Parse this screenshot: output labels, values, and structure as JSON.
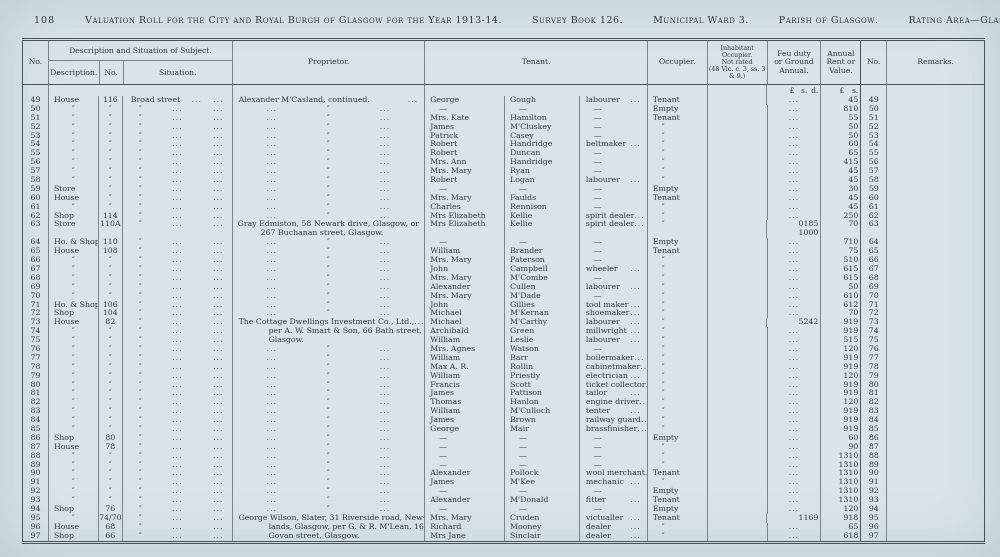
{
  "page": {
    "number": "108",
    "title": "Valuation Roll for the City and Royal Burgh of Glasgow for the Year 1913-14.",
    "survey_book": "Survey Book 126.",
    "municipal_ward": "Municipal Ward 3.",
    "parish": "Parish of Glasgow.",
    "rating_area": "Rating Area—Glasgow."
  },
  "colors": {
    "paper": "#d9e4ea",
    "ink": "#2e363a",
    "rule": "#49535a"
  },
  "table": {
    "col_no": "No.",
    "col_desc_group": "Description and Situation of Subject.",
    "col_description": "Description.",
    "col_house_no": "No.",
    "col_situation": "Situation.",
    "col_proprietor": "Proprietor.",
    "col_tenant": "Tenant.",
    "col_occupier": "Occupier.",
    "col_inhabitant_lines": [
      "Inhabitant Occupier.",
      "Not rated",
      "(48 Vic. c. 3, ss. 3 & 9.)"
    ],
    "col_feu_lines": [
      "Feu duty",
      "or Ground",
      "Annual."
    ],
    "col_rent_lines": [
      "Annual",
      "Rent or",
      "Value."
    ],
    "col_no_right": "No.",
    "col_remarks": "Remarks.",
    "money_lsd": [
      "£",
      "s.",
      "d."
    ],
    "money_ls": [
      "£",
      "s."
    ],
    "ditto": "″",
    "dash": "—",
    "dots": "...",
    "row_fields": [
      "no",
      "description",
      "house_no",
      "situation",
      "proprietor_type",
      "proprietor",
      "tenant_first",
      "tenant_surname",
      "tenant_occupation",
      "occupier",
      "feu_duty",
      "feu_duty_line2",
      "annual_rent"
    ],
    "rows": [
      [
        "49",
        "House",
        "116",
        "Broad street",
        "text",
        "Alexander M'Casland, continued.",
        "George",
        "Gough",
        "labourer",
        "Tenant",
        "",
        "",
        "4 5"
      ],
      [
        "50",
        "″",
        "″",
        "″",
        "ditto",
        "",
        "—",
        "—",
        "—",
        "Empty",
        "",
        "",
        "8 10"
      ],
      [
        "51",
        "″",
        "″",
        "″",
        "ditto",
        "",
        "Mrs. Kate",
        "Hamilton",
        "—",
        "Tenant",
        "",
        "",
        "5 5"
      ],
      [
        "52",
        "″",
        "″",
        "″",
        "ditto",
        "",
        "James",
        "M'Cluskey",
        "—",
        "″",
        "",
        "",
        "5 0"
      ],
      [
        "53",
        "″",
        "″",
        "″",
        "ditto",
        "",
        "Patrick",
        "Casey",
        "—",
        "″",
        "",
        "",
        "5 0"
      ],
      [
        "54",
        "″",
        "″",
        "″",
        "ditto",
        "",
        "Robert",
        "Handridge",
        "beltmaker",
        "″",
        "",
        "",
        "6 0"
      ],
      [
        "55",
        "″",
        "″",
        "″",
        "ditto",
        "",
        "Robert",
        "Duncan",
        "—",
        "″",
        "",
        "",
        "6 5"
      ],
      [
        "56",
        "″",
        "″",
        "″",
        "ditto",
        "",
        "Mrs. Ann",
        "Handridge",
        "—",
        "″",
        "",
        "",
        "4 15"
      ],
      [
        "57",
        "″",
        "″",
        "″",
        "ditto",
        "",
        "Mrs. Mary",
        "Ryan",
        "—",
        "″",
        "",
        "",
        "4 5"
      ],
      [
        "58",
        "″",
        "″",
        "″",
        "ditto",
        "",
        "Robert",
        "Logan",
        "labourer",
        "″",
        "",
        "",
        "4 5"
      ],
      [
        "59",
        "Store",
        "″",
        "″",
        "ditto",
        "",
        "—",
        "—",
        "—",
        "Empty",
        "",
        "",
        "3 0"
      ],
      [
        "60",
        "House",
        "″",
        "″",
        "ditto",
        "",
        "Mrs. Mary",
        "Faulds",
        "—",
        "Tenant",
        "",
        "",
        "4 5"
      ],
      [
        "61",
        "″",
        "″",
        "″",
        "ditto",
        "",
        "Charles",
        "Rennison",
        "—",
        "″",
        "",
        "",
        "4 5"
      ],
      [
        "62",
        "Shop",
        "114",
        "″",
        "ditto",
        "",
        "Mrs Elizabeth",
        "Kellie",
        "spirit dealer",
        "″",
        "",
        "",
        "25 0"
      ],
      [
        "63",
        "Store",
        "110A",
        "″",
        "text2",
        "Gray Edmiston, 58 Newark drive, Glasgow, or|267 Buchanan street, Glasgow.",
        "Mrs Elizabeth",
        "Kellie",
        "spirit dealer",
        "″",
        "0 18 5",
        "10 0 0",
        "7 0"
      ],
      [
        "64",
        "Ho. & Shop",
        "110",
        "″",
        "ditto",
        "",
        "—",
        "—",
        "—",
        "Empty",
        "",
        "",
        "7 10"
      ],
      [
        "65",
        "House",
        "108",
        "″",
        "ditto",
        "",
        "William",
        "Brander",
        "—",
        "Tenant",
        "",
        "",
        "7 5"
      ],
      [
        "66",
        "″",
        "″",
        "″",
        "ditto",
        "",
        "Mrs. Mary",
        "Paterson",
        "—",
        "″",
        "",
        "",
        "5 10"
      ],
      [
        "67",
        "″",
        "″",
        "″",
        "ditto",
        "",
        "John",
        "Campbell",
        "wheeler",
        "″",
        "",
        "",
        "6 15"
      ],
      [
        "68",
        "″",
        "″",
        "″",
        "ditto",
        "",
        "Mrs. Mary",
        "M'Combe",
        "—",
        "″",
        "",
        "",
        "6 15"
      ],
      [
        "69",
        "″",
        "″",
        "″",
        "ditto",
        "",
        "Alexander",
        "Cullen",
        "labourer",
        "″",
        "",
        "",
        "5 0"
      ],
      [
        "70",
        "″",
        "″",
        "″",
        "ditto",
        "",
        "Mrs. Mary",
        "M'Dade",
        "—",
        "″",
        "",
        "",
        "6 10"
      ],
      [
        "71",
        "Ho. & Shop",
        "106",
        "″",
        "ditto",
        "",
        "John",
        "Gillies",
        "tool maker",
        "″",
        "",
        "",
        "6 12"
      ],
      [
        "72",
        "Shop",
        "104",
        "″",
        "ditto",
        "",
        "Michael",
        "M'Kernan",
        "shoemaker",
        "″",
        "",
        "",
        "7 0"
      ],
      [
        "73",
        "House",
        "82",
        "″",
        "text",
        "The Cottage Dwellings Investment Co., Ltd.,",
        "Michael",
        "M'Carthy",
        "labourer",
        "″",
        "52 4 2",
        "",
        "9 19"
      ],
      [
        "74",
        "″",
        "″",
        "″",
        "cont",
        "per A. W. Smart & Son, 66 Bath street,",
        "Archibald",
        "Green",
        "millwright",
        "″",
        "",
        "",
        "9 19"
      ],
      [
        "75",
        "″",
        "″",
        "″",
        "cont",
        "Glasgow.",
        "William",
        "Leslie",
        "labourer",
        "″",
        "",
        "",
        "5 15"
      ],
      [
        "76",
        "″",
        "″",
        "″",
        "ditto",
        "",
        "Mrs. Agnes",
        "Watson",
        "—",
        "″",
        "",
        "",
        "12 0"
      ],
      [
        "77",
        "″",
        "″",
        "″",
        "ditto",
        "",
        "William",
        "Barr",
        "boilermaker",
        "″",
        "",
        "",
        "9 19"
      ],
      [
        "78",
        "″",
        "″",
        "″",
        "ditto",
        "",
        "Max A. R.",
        "Rollin",
        "cabinetmaker",
        "″",
        "",
        "",
        "9 19"
      ],
      [
        "79",
        "″",
        "″",
        "″",
        "ditto",
        "",
        "William",
        "Priestly",
        "electrician",
        "″",
        "",
        "",
        "12 0"
      ],
      [
        "80",
        "″",
        "″",
        "″",
        "ditto",
        "",
        "Francis",
        "Scott",
        "ticket collector",
        "″",
        "",
        "",
        "9 19"
      ],
      [
        "81",
        "″",
        "″",
        "″",
        "ditto",
        "",
        "James",
        "Pattison",
        "tailor",
        "″",
        "",
        "",
        "9 19"
      ],
      [
        "82",
        "″",
        "″",
        "″",
        "ditto",
        "",
        "Thomas",
        "Hanlon",
        "engine driver",
        "″",
        "",
        "",
        "12 0"
      ],
      [
        "83",
        "″",
        "″",
        "″",
        "ditto",
        "",
        "William",
        "M'Culloch",
        "tenter",
        "″",
        "",
        "",
        "9 19"
      ],
      [
        "84",
        "″",
        "″",
        "″",
        "ditto",
        "",
        "James",
        "Brown",
        "railway guard",
        "″",
        "",
        "",
        "9 19"
      ],
      [
        "85",
        "″",
        "″",
        "″",
        "ditto",
        "",
        "George",
        "Mair",
        "brassfinisher",
        "″",
        "",
        "",
        "9 19"
      ],
      [
        "86",
        "Shop",
        "80",
        "″",
        "ditto",
        "",
        "—",
        "—",
        "—",
        "Empty",
        "",
        "",
        "6 0"
      ],
      [
        "87",
        "House",
        "78",
        "″",
        "ditto",
        "",
        "—",
        "—",
        "—",
        "″",
        "",
        "",
        "9 0"
      ],
      [
        "88",
        "″",
        "″",
        "″",
        "ditto",
        "",
        "—",
        "—",
        "—",
        "″",
        "",
        "",
        "13 10"
      ],
      [
        "89",
        "″",
        "″",
        "″",
        "ditto",
        "",
        "—",
        "—",
        "—",
        "″",
        "",
        "",
        "13 10"
      ],
      [
        "90",
        "″",
        "″",
        "″",
        "ditto",
        "",
        "Alexander",
        "Pollock",
        "wool merchant",
        "Tenant",
        "",
        "",
        "13 10"
      ],
      [
        "91",
        "″",
        "″",
        "″",
        "ditto",
        "",
        "James",
        "M'Kee",
        "mechanic",
        "″",
        "",
        "",
        "13 10"
      ],
      [
        "92",
        "″",
        "″",
        "″",
        "ditto",
        "",
        "—",
        "—",
        "—",
        "Empty",
        "",
        "",
        "13 10"
      ],
      [
        "93",
        "″",
        "″",
        "″",
        "ditto",
        "",
        "Alexander",
        "M'Donald",
        "fitter",
        "Tenant",
        "",
        "",
        "13 10"
      ],
      [
        "94",
        "Shop",
        "76",
        "″",
        "ditto",
        "",
        "—",
        "—",
        "—",
        "Empty",
        "",
        "",
        "12 0"
      ],
      [
        "95",
        "″",
        "74/70",
        "″",
        "text",
        "George Wilson, Slater, 31 Riverside road, New-",
        "Mrs. Mary",
        "Cruden",
        "victualler",
        "Tenant",
        "1 16 9",
        "",
        "9 18"
      ],
      [
        "96",
        "House",
        "68",
        "″",
        "cont",
        "lands, Glasgow, per G. & R. M'Lean, 165",
        "Richard",
        "Mooney",
        "dealer",
        "″",
        "",
        "",
        "6 5"
      ],
      [
        "97",
        "Shop",
        "66",
        "″",
        "cont",
        "Govan street, Glasgow.",
        "Mrs Jane",
        "Sinclair",
        "dealer",
        "″",
        "",
        "",
        "6 18"
      ]
    ]
  }
}
